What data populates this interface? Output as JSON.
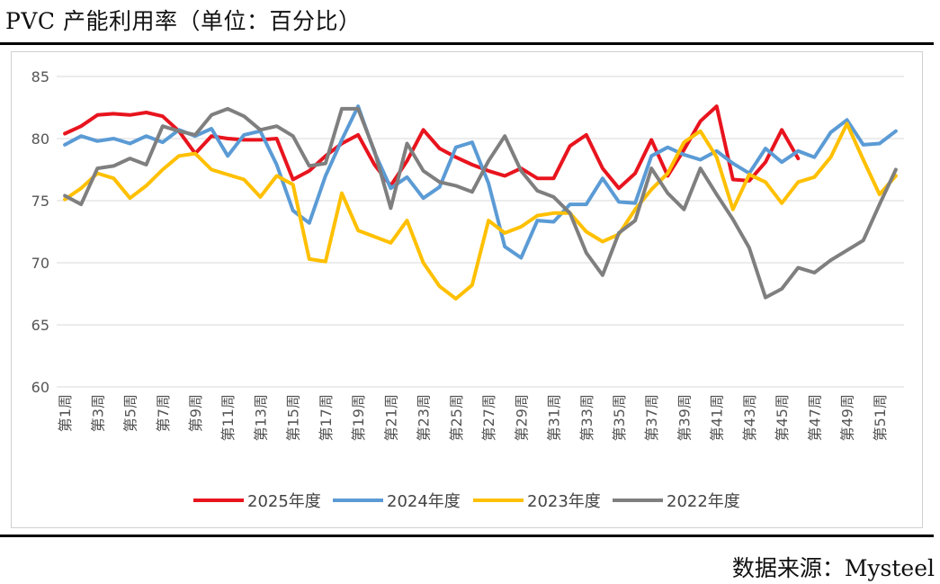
{
  "title": "PVC 产能利用率（单位：百分比）",
  "source": "数据来源：Mysteel",
  "colors": {
    "2025年度": "#e8141e",
    "2024年度": "#5b9bd5",
    "2023年度": "#ffc000",
    "2022年度": "#7f7f7f",
    "grid": "#d9d9d9"
  },
  "chart_data": {
    "type": "line",
    "title": "PVC 产能利用率（单位：百分比）",
    "xlabel": "",
    "ylabel": "",
    "ylim": [
      60,
      85
    ],
    "yticks": [
      60,
      65,
      70,
      75,
      80,
      85
    ],
    "grid": true,
    "legend": "bottom",
    "x_tick_labels": [
      "第1周",
      "第3周",
      "第5周",
      "第7周",
      "第9周",
      "第11周",
      "第13周",
      "第15周",
      "第17周",
      "第19周",
      "第21周",
      "第23周",
      "第25周",
      "第27周",
      "第29周",
      "第31周",
      "第33周",
      "第35周",
      "第37周",
      "第39周",
      "第41周",
      "第43周",
      "第45周",
      "第47周",
      "第49周",
      "第51周"
    ],
    "num_weeks": 52,
    "series": [
      {
        "name": "2025年度",
        "values": [
          80.4,
          81.0,
          81.9,
          82.0,
          81.9,
          82.1,
          81.8,
          80.6,
          78.8,
          80.2,
          80.0,
          79.9,
          79.9,
          80.0,
          76.7,
          77.4,
          78.6,
          79.6,
          80.3,
          77.9,
          76.2,
          78.2,
          80.7,
          79.2,
          78.5,
          77.9,
          77.4,
          77.0,
          77.6,
          76.8,
          76.8,
          79.4,
          80.3,
          77.6,
          76.0,
          77.2,
          79.9,
          77.0,
          79.1,
          81.4,
          82.6,
          76.7,
          76.6,
          78.1,
          80.7,
          78.4
        ]
      },
      {
        "name": "2024年度",
        "values": [
          79.5,
          80.2,
          79.8,
          80.0,
          79.6,
          80.2,
          79.7,
          80.7,
          80.2,
          80.8,
          78.6,
          80.3,
          80.6,
          77.9,
          74.2,
          73.2,
          77.0,
          79.9,
          82.6,
          78.9,
          76.0,
          76.9,
          75.2,
          76.1,
          79.3,
          79.7,
          76.4,
          71.3,
          70.4,
          73.4,
          73.3,
          74.7,
          74.7,
          76.8,
          74.9,
          74.8,
          78.6,
          79.3,
          78.7,
          78.3,
          79.0,
          78.0,
          77.2,
          79.2,
          78.1,
          79.0,
          78.5,
          80.5,
          81.5,
          79.5,
          79.6,
          80.6
        ]
      },
      {
        "name": "2023年度",
        "values": [
          75.1,
          76.0,
          77.2,
          76.8,
          75.2,
          76.2,
          77.5,
          78.6,
          78.8,
          77.5,
          77.1,
          76.7,
          75.3,
          77.0,
          76.3,
          70.3,
          70.1,
          75.6,
          72.6,
          72.1,
          71.6,
          73.4,
          70.0,
          68.1,
          67.1,
          68.2,
          73.4,
          72.4,
          72.9,
          73.8,
          74.0,
          74.0,
          72.5,
          71.7,
          72.3,
          74.3,
          75.9,
          77.2,
          79.7,
          80.6,
          78.5,
          74.3,
          77.1,
          76.5,
          74.8,
          76.5,
          76.9,
          78.5,
          81.2,
          78.3,
          75.5,
          77.0
        ]
      },
      {
        "name": "2022年度",
        "values": [
          75.4,
          74.7,
          77.6,
          77.8,
          78.4,
          77.9,
          81.0,
          80.6,
          80.3,
          81.9,
          82.4,
          81.8,
          80.7,
          81.0,
          80.2,
          77.8,
          78.0,
          82.4,
          82.4,
          79.0,
          74.4,
          79.6,
          77.4,
          76.5,
          76.2,
          75.7,
          78.2,
          80.2,
          77.4,
          75.8,
          75.3,
          74.0,
          70.8,
          69.0,
          72.4,
          73.4,
          77.6,
          75.6,
          74.3,
          77.6,
          75.5,
          73.5,
          71.2,
          67.2,
          67.9,
          69.6,
          69.2,
          70.2,
          71.0,
          71.8,
          74.7,
          77.5
        ]
      }
    ]
  }
}
